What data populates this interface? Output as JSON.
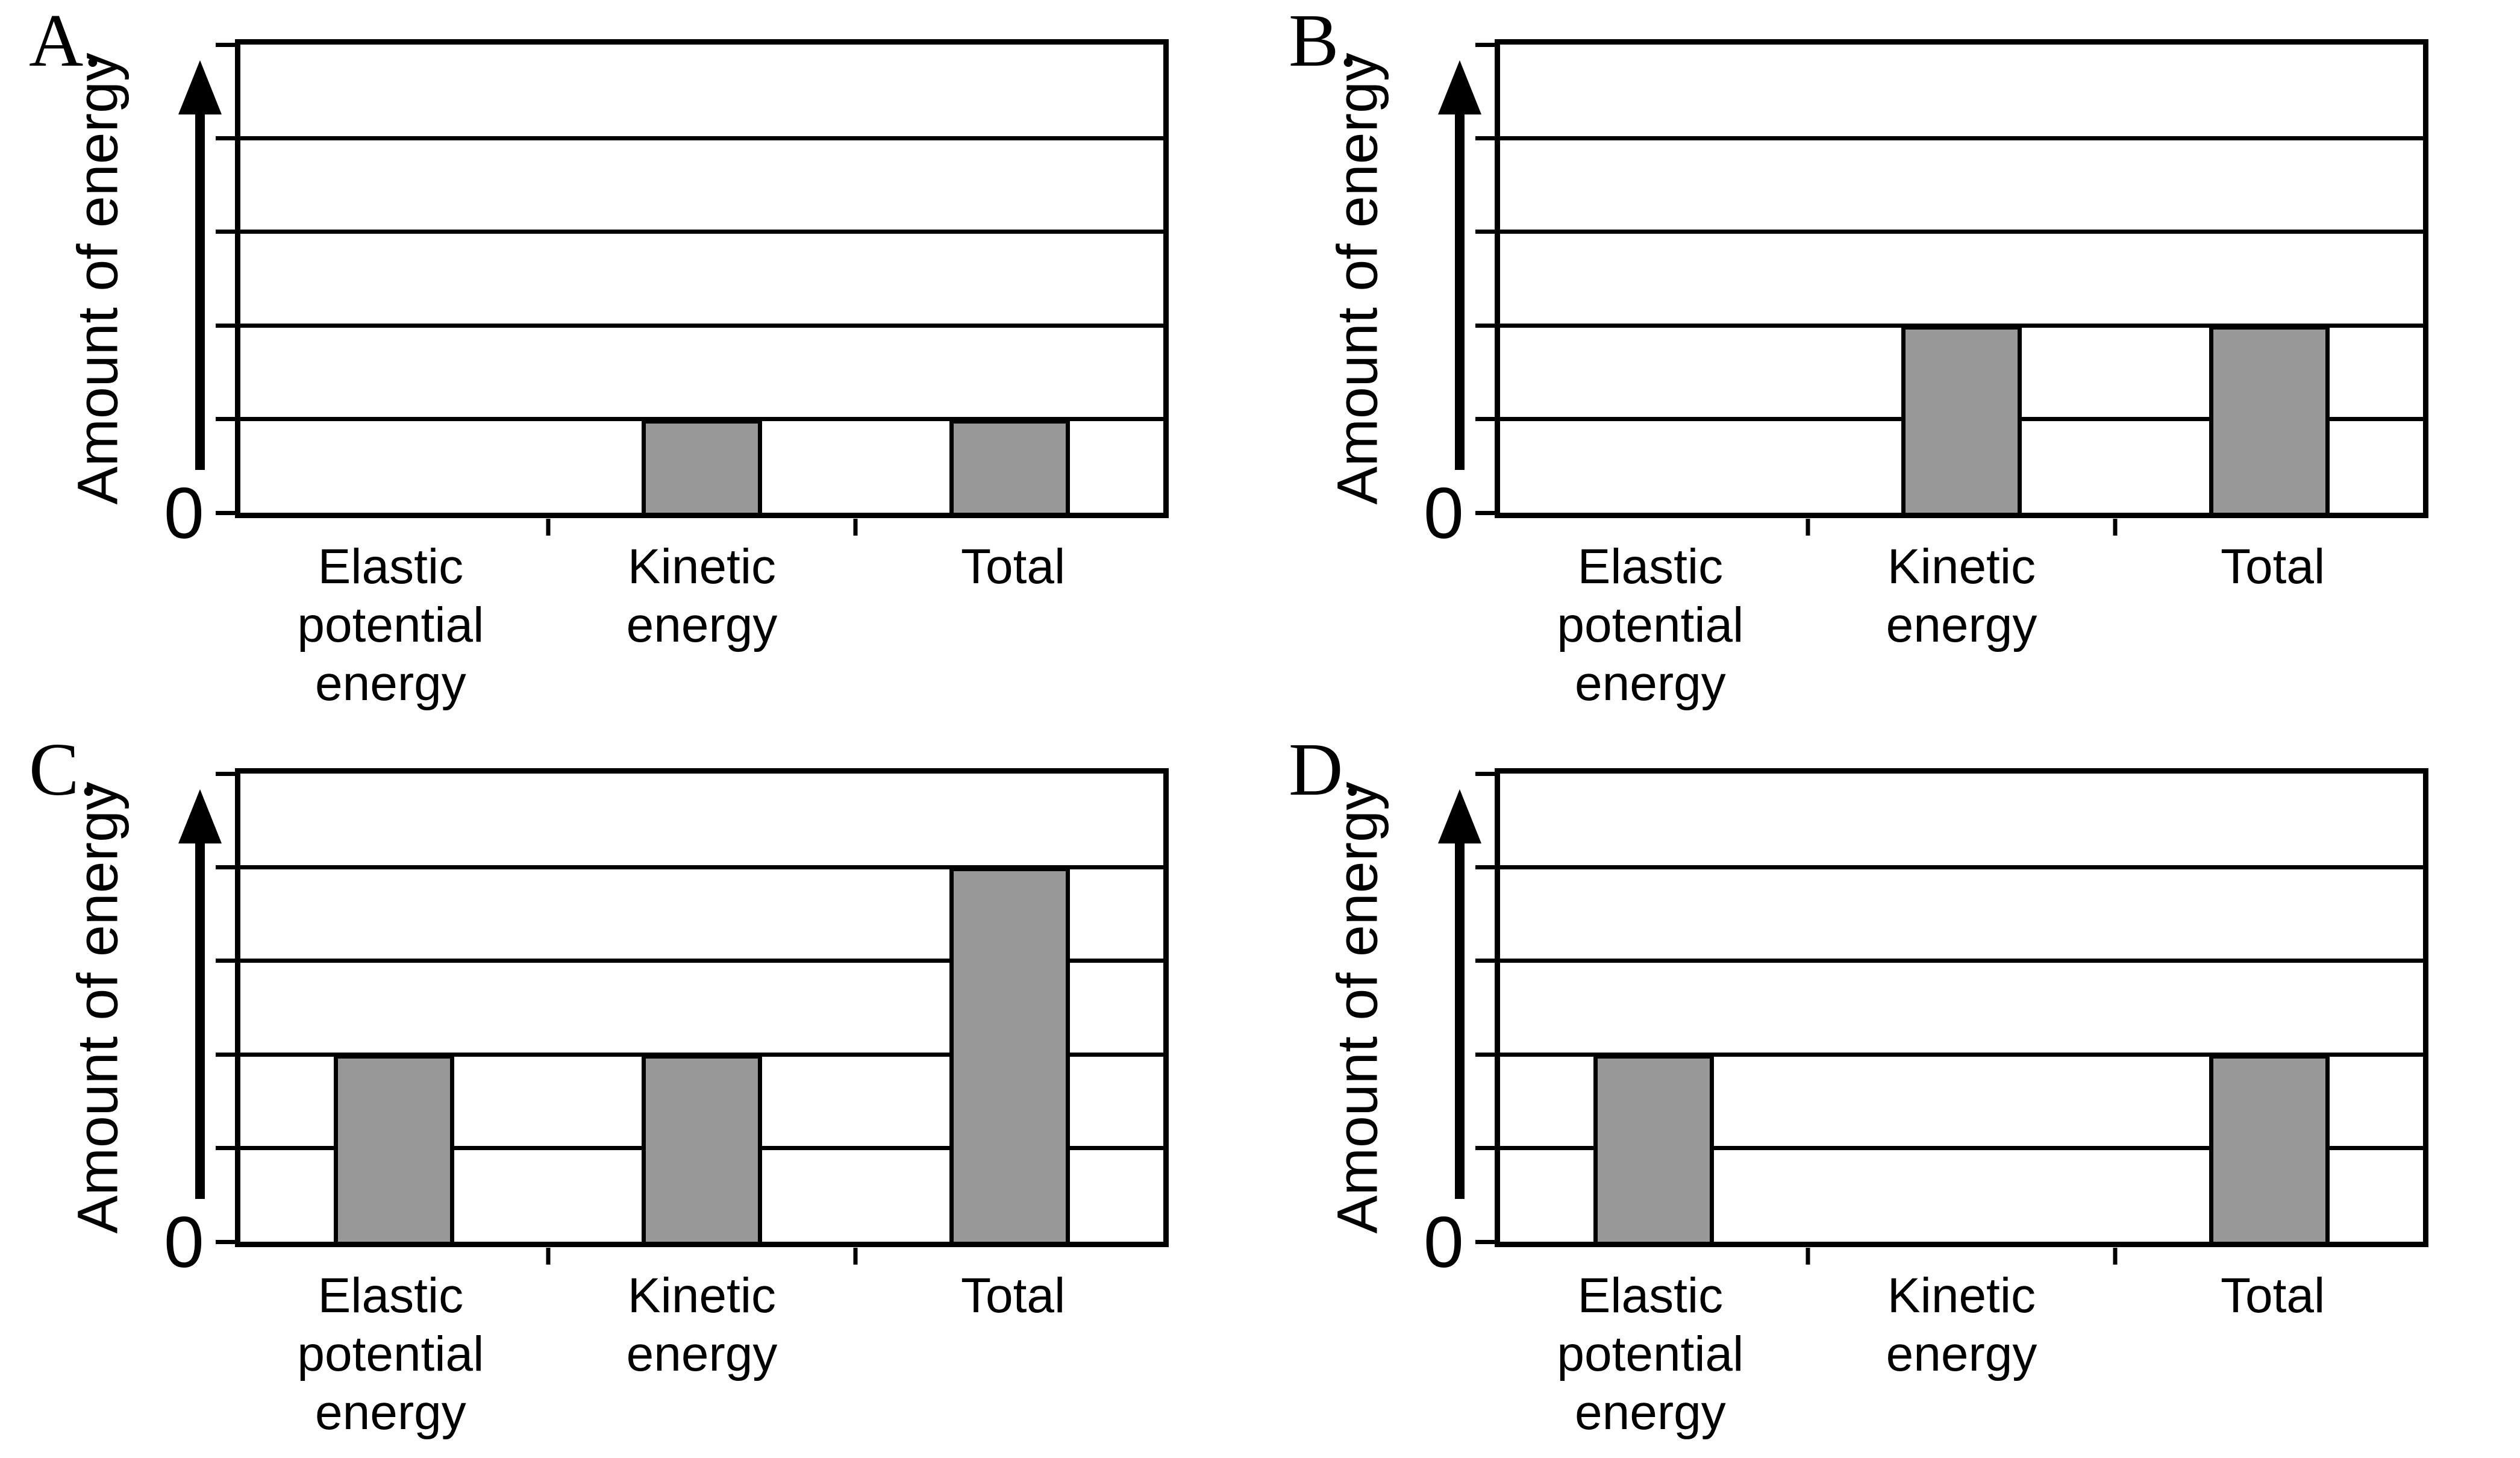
{
  "page": {
    "background": "#ffffff"
  },
  "colors": {
    "line": "#000000",
    "bar_fill": "#989898",
    "bar_border": "#000000"
  },
  "chart_data": [
    {
      "panel_label": "A.",
      "type": "bar",
      "title": "",
      "ylabel": "Amount of energy",
      "xlabel": "",
      "origin_tick_label": "0",
      "categories": [
        "Elastic potential energy",
        "Kinetic energy",
        "Total"
      ],
      "categories_multiline": [
        "Elastic\npotential\nenergy",
        "Kinetic\nenergy",
        "Total"
      ],
      "values": [
        0,
        1,
        1
      ],
      "units": "gridline divisions (axis unlabeled)",
      "ylim": [
        0,
        5
      ],
      "gridline_divisions": 5,
      "grid": "horizontal solid black lines",
      "legend": "none",
      "bar_color": "#989898",
      "bar_border_color": "#000000"
    },
    {
      "panel_label": "B.",
      "type": "bar",
      "title": "",
      "ylabel": "Amount of energy",
      "xlabel": "",
      "origin_tick_label": "0",
      "categories": [
        "Elastic potential energy",
        "Kinetic energy",
        "Total"
      ],
      "categories_multiline": [
        "Elastic\npotential\nenergy",
        "Kinetic\nenergy",
        "Total"
      ],
      "values": [
        0,
        2,
        2
      ],
      "units": "gridline divisions (axis unlabeled)",
      "ylim": [
        0,
        5
      ],
      "gridline_divisions": 5,
      "grid": "horizontal solid black lines",
      "legend": "none",
      "bar_color": "#989898",
      "bar_border_color": "#000000"
    },
    {
      "panel_label": "C.",
      "type": "bar",
      "title": "",
      "ylabel": "Amount of energy",
      "xlabel": "",
      "origin_tick_label": "0",
      "categories": [
        "Elastic potential energy",
        "Kinetic energy",
        "Total"
      ],
      "categories_multiline": [
        "Elastic\npotential\nenergy",
        "Kinetic\nenergy",
        "Total"
      ],
      "values": [
        2,
        2,
        4
      ],
      "units": "gridline divisions (axis unlabeled)",
      "ylim": [
        0,
        5
      ],
      "gridline_divisions": 5,
      "grid": "horizontal solid black lines",
      "legend": "none",
      "bar_color": "#989898",
      "bar_border_color": "#000000"
    },
    {
      "panel_label": "D.",
      "type": "bar",
      "title": "",
      "ylabel": "Amount of energy",
      "xlabel": "",
      "origin_tick_label": "0",
      "categories": [
        "Elastic potential energy",
        "Kinetic energy",
        "Total"
      ],
      "categories_multiline": [
        "Elastic\npotential\nenergy",
        "Kinetic\nenergy",
        "Total"
      ],
      "values": [
        2,
        0,
        2
      ],
      "units": "gridline divisions (axis unlabeled)",
      "ylim": [
        0,
        5
      ],
      "gridline_divisions": 5,
      "grid": "horizontal solid black lines",
      "legend": "none",
      "bar_color": "#989898",
      "bar_border_color": "#000000"
    }
  ]
}
